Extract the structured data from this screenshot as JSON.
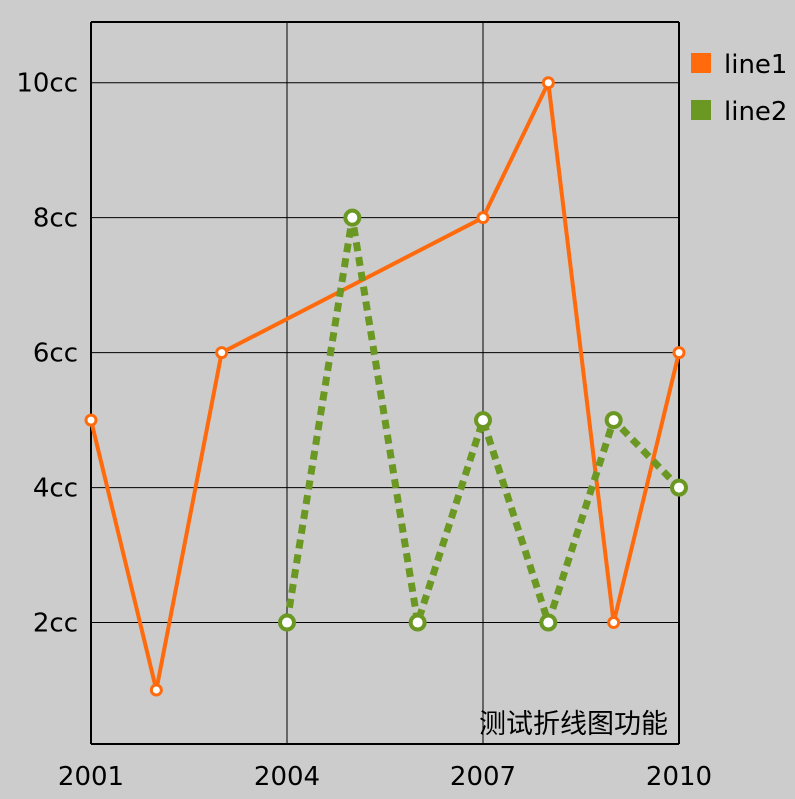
{
  "chart_data": {
    "type": "line",
    "x": [
      2001,
      2002,
      2003,
      2004,
      2005,
      2006,
      2007,
      2008,
      2009,
      2010
    ],
    "xticks": [
      "2001",
      "2004",
      "2007",
      "2010"
    ],
    "xlim": [
      2001,
      2010
    ],
    "yticks": [
      "2cc",
      "4cc",
      "6cc",
      "8cc",
      "10cc"
    ],
    "ytick_values": [
      2,
      4,
      6,
      8,
      10
    ],
    "ylim": [
      0.2,
      10.9
    ],
    "grid": true,
    "legend_position": "top-right",
    "annotation": "测试折线图功能",
    "series": [
      {
        "name": "line1",
        "color": "#ff6a0d",
        "style": "solid",
        "values": [
          5,
          1,
          6,
          null,
          null,
          null,
          8,
          10,
          2,
          6
        ]
      },
      {
        "name": "line2",
        "color": "#6b9723",
        "style": "dotted",
        "values": [
          null,
          null,
          null,
          2,
          8,
          2,
          5,
          2,
          5,
          4
        ]
      }
    ]
  }
}
